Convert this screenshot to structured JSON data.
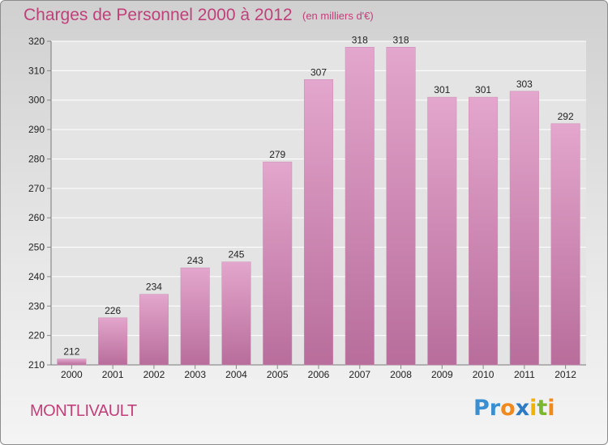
{
  "title": "Charges de Personnel 2000 à 2012",
  "subtitle": "(en milliers d'€)",
  "commune": "MONTLIVAULT",
  "logo": {
    "letters": [
      {
        "ch": "P",
        "color": "#3a8fd0"
      },
      {
        "ch": "r",
        "color": "#3a8fd0"
      },
      {
        "ch": "o",
        "color": "#f08a1c"
      },
      {
        "ch": "x",
        "color": "#2e7bc4"
      },
      {
        "ch": "i",
        "color": "#f0b400"
      },
      {
        "ch": "t",
        "color": "#7cb82f"
      },
      {
        "ch": "i",
        "color": "#f08a1c"
      }
    ]
  },
  "colors": {
    "bar_top": "#e3a6cc",
    "bar_bottom": "#b86d9b",
    "text_accent": "#c0407a"
  },
  "chart_data": {
    "type": "bar",
    "title": "Charges de Personnel 2000 à 2012",
    "subtitle": "(en milliers d'€)",
    "xlabel": "",
    "ylabel": "",
    "categories": [
      "2000",
      "2001",
      "2002",
      "2003",
      "2004",
      "2005",
      "2006",
      "2007",
      "2008",
      "2009",
      "2010",
      "2011",
      "2012"
    ],
    "values": [
      212,
      226,
      234,
      243,
      245,
      279,
      307,
      318,
      318,
      301,
      301,
      303,
      292
    ],
    "ylim": [
      210,
      320
    ],
    "yticks": [
      210,
      220,
      230,
      240,
      250,
      260,
      270,
      280,
      290,
      300,
      310,
      320
    ],
    "grid": true,
    "legend": "none"
  }
}
